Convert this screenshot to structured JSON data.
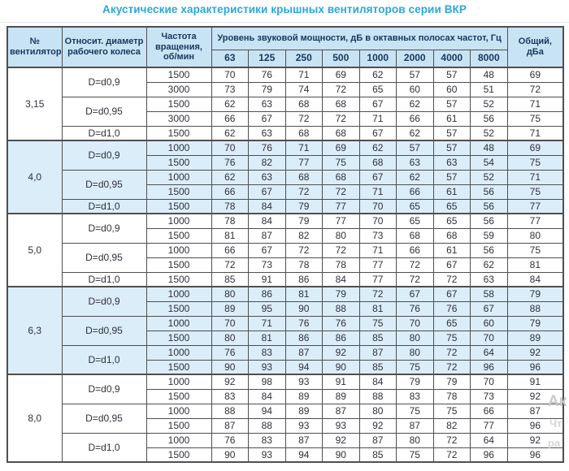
{
  "title": "Акустические характеристики крышных вентиляторов серии ВКР",
  "colors": {
    "title": "#2aa7db",
    "header_bg": "#c8e3f3",
    "section_shade_bg": "#dbedf8",
    "header_text": "#17375e",
    "cell_text": "#30303a",
    "border": "#4f4f4f"
  },
  "watermark": {
    "fragments": [
      "Ак",
      "Чт",
      "ра"
    ]
  },
  "table": {
    "headers": {
      "fan_no": "№ вентилятора",
      "rel_diameter": "Относит. диаметр рабочего колеса",
      "rpm": "Частота вращения, об/мин",
      "spl_group": "Уровень звуковой мощности, дБ в октавных полосах частот, Гц",
      "freqs": [
        "63",
        "125",
        "250",
        "500",
        "1000",
        "2000",
        "4000",
        "8000"
      ],
      "total": "Общий, дБа"
    },
    "sections": [
      {
        "fan": "3,15",
        "shaded": false,
        "groups": [
          {
            "d": "D=d0,9",
            "rows": [
              {
                "rpm": "1500",
                "v": [
                  70,
                  76,
                  71,
                  69,
                  62,
                  57,
                  57,
                  48
                ],
                "total": 69
              },
              {
                "rpm": "3000",
                "v": [
                  73,
                  79,
                  74,
                  72,
                  65,
                  60,
                  60,
                  51
                ],
                "total": 72
              }
            ]
          },
          {
            "d": "D=d0,95",
            "rows": [
              {
                "rpm": "1500",
                "v": [
                  62,
                  63,
                  68,
                  68,
                  67,
                  62,
                  57,
                  52
                ],
                "total": 71
              },
              {
                "rpm": "3000",
                "v": [
                  66,
                  67,
                  72,
                  72,
                  71,
                  66,
                  61,
                  56
                ],
                "total": 75
              }
            ]
          },
          {
            "d": "D=d1,0",
            "rows": [
              {
                "rpm": "1500",
                "v": [
                  62,
                  63,
                  68,
                  68,
                  67,
                  62,
                  57,
                  52
                ],
                "total": 71
              }
            ]
          }
        ]
      },
      {
        "fan": "4,0",
        "shaded": true,
        "groups": [
          {
            "d": "D=d0,9",
            "rows": [
              {
                "rpm": "1000",
                "v": [
                  70,
                  76,
                  71,
                  69,
                  62,
                  57,
                  57,
                  48
                ],
                "total": 69
              },
              {
                "rpm": "1500",
                "v": [
                  76,
                  82,
                  77,
                  75,
                  68,
                  63,
                  63,
                  54
                ],
                "total": 75
              }
            ]
          },
          {
            "d": "D=d0,95",
            "rows": [
              {
                "rpm": "1000",
                "v": [
                  62,
                  63,
                  68,
                  68,
                  67,
                  62,
                  57,
                  52
                ],
                "total": 71
              },
              {
                "rpm": "1500",
                "v": [
                  66,
                  67,
                  72,
                  72,
                  71,
                  66,
                  61,
                  56
                ],
                "total": 75
              }
            ]
          },
          {
            "d": "D=d1,0",
            "rows": [
              {
                "rpm": "1500",
                "v": [
                  78,
                  84,
                  79,
                  77,
                  70,
                  65,
                  65,
                  56
                ],
                "total": 77
              }
            ]
          }
        ]
      },
      {
        "fan": "5,0",
        "shaded": false,
        "groups": [
          {
            "d": "D=d0,9",
            "rows": [
              {
                "rpm": "1000",
                "v": [
                  78,
                  84,
                  79,
                  77,
                  70,
                  65,
                  65,
                  56
                ],
                "total": 77
              },
              {
                "rpm": "1500",
                "v": [
                  81,
                  87,
                  82,
                  80,
                  73,
                  68,
                  68,
                  59
                ],
                "total": 80
              }
            ]
          },
          {
            "d": "D=d0,95",
            "rows": [
              {
                "rpm": "1000",
                "v": [
                  66,
                  67,
                  72,
                  72,
                  71,
                  66,
                  61,
                  56
                ],
                "total": 75
              },
              {
                "rpm": "1500",
                "v": [
                  72,
                  73,
                  78,
                  78,
                  77,
                  72,
                  67,
                  62
                ],
                "total": 81
              }
            ]
          },
          {
            "d": "D=d1,0",
            "rows": [
              {
                "rpm": "1500",
                "v": [
                  85,
                  91,
                  86,
                  84,
                  77,
                  72,
                  72,
                  63
                ],
                "total": 84
              }
            ]
          }
        ]
      },
      {
        "fan": "6,3",
        "shaded": true,
        "groups": [
          {
            "d": "D=d0,9",
            "rows": [
              {
                "rpm": "1000",
                "v": [
                  80,
                  86,
                  81,
                  79,
                  72,
                  67,
                  67,
                  58
                ],
                "total": 79
              },
              {
                "rpm": "1500",
                "v": [
                  89,
                  95,
                  90,
                  88,
                  81,
                  76,
                  76,
                  67
                ],
                "total": 88
              }
            ]
          },
          {
            "d": "D=d0,95",
            "rows": [
              {
                "rpm": "1000",
                "v": [
                  70,
                  71,
                  76,
                  76,
                  75,
                  70,
                  65,
                  60
                ],
                "total": 79
              },
              {
                "rpm": "1500",
                "v": [
                  80,
                  81,
                  86,
                  86,
                  85,
                  80,
                  75,
                  70
                ],
                "total": 89
              }
            ]
          },
          {
            "d": "D=d1,0",
            "rows": [
              {
                "rpm": "1000",
                "v": [
                  76,
                  83,
                  87,
                  92,
                  87,
                  80,
                  72,
                  64
                ],
                "total": 92
              },
              {
                "rpm": "1500",
                "v": [
                  90,
                  93,
                  94,
                  90,
                  85,
                  75,
                  72,
                  96
                ],
                "total": 96
              }
            ]
          }
        ]
      },
      {
        "fan": "8,0",
        "shaded": false,
        "groups": [
          {
            "d": "D=d0,9",
            "rows": [
              {
                "rpm": "1000",
                "v": [
                  92,
                  98,
                  93,
                  91,
                  84,
                  79,
                  79,
                  70
                ],
                "total": 91
              },
              {
                "rpm": "1500",
                "v": [
                  83,
                  84,
                  89,
                  89,
                  88,
                  83,
                  78,
                  73
                ],
                "total": 92
              }
            ]
          },
          {
            "d": "D=d0,95",
            "rows": [
              {
                "rpm": "1000",
                "v": [
                  88,
                  94,
                  89,
                  87,
                  80,
                  75,
                  75,
                  66
                ],
                "total": 87
              },
              {
                "rpm": "1500",
                "v": [
                  87,
                  88,
                  93,
                  93,
                  92,
                  87,
                  82,
                  77
                ],
                "total": 96
              }
            ]
          },
          {
            "d": "D=d1,0",
            "rows": [
              {
                "rpm": "1000",
                "v": [
                  76,
                  83,
                  87,
                  92,
                  87,
                  80,
                  72,
                  64
                ],
                "total": 92
              },
              {
                "rpm": "1500",
                "v": [
                  90,
                  93,
                  94,
                  90,
                  85,
                  75,
                  72,
                  96
                ],
                "total": 96
              }
            ]
          }
        ]
      }
    ]
  }
}
